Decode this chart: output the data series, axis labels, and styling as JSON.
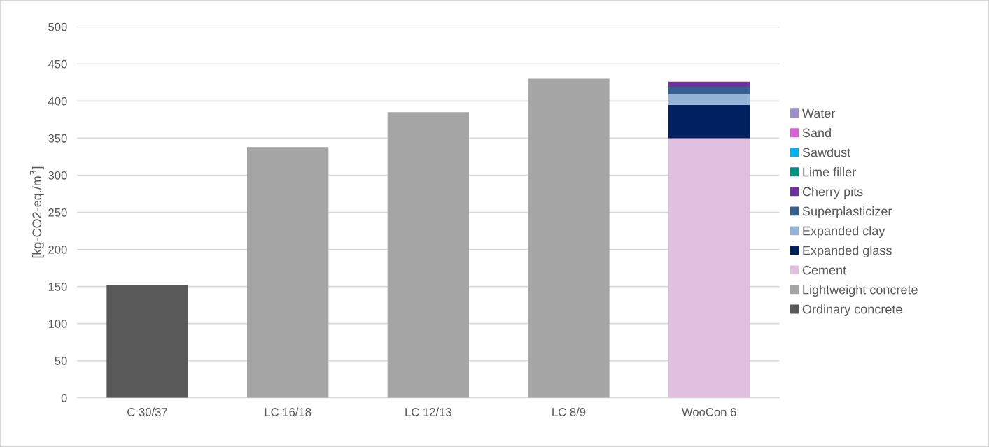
{
  "chart_data": {
    "type": "bar",
    "stacked": true,
    "categories": [
      "C 30/37",
      "LC 16/18",
      "LC 12/13",
      "LC 8/9",
      "WooCon 6"
    ],
    "ylabel": "[kg-CO2-eq./m$^{3}$]",
    "ylim": [
      0,
      500
    ],
    "yticks": [
      0,
      50,
      100,
      150,
      200,
      250,
      300,
      350,
      400,
      450,
      500
    ],
    "grid": "y",
    "legend": "right",
    "series": [
      {
        "name": "Ordinary concrete",
        "color": "#595959",
        "values": [
          152,
          null,
          null,
          null,
          null
        ]
      },
      {
        "name": "Lightweight concrete",
        "color": "#a5a5a5",
        "values": [
          null,
          338,
          385,
          430,
          null
        ]
      },
      {
        "name": "Cement",
        "color": "#e0bfdf",
        "values": [
          null,
          null,
          null,
          null,
          350
        ]
      },
      {
        "name": "Expanded glass",
        "color": "#002060",
        "values": [
          null,
          null,
          null,
          null,
          45
        ]
      },
      {
        "name": "Expanded clay",
        "color": "#95b3d7",
        "values": [
          null,
          null,
          null,
          null,
          14
        ]
      },
      {
        "name": "Superplasticizer",
        "color": "#366092",
        "values": [
          null,
          null,
          null,
          null,
          10
        ]
      },
      {
        "name": "Cherry pits",
        "color": "#7030a0",
        "values": [
          null,
          null,
          null,
          null,
          7
        ]
      },
      {
        "name": "Lime filler",
        "color": "#009281",
        "values": [
          null,
          null,
          null,
          null,
          null
        ]
      },
      {
        "name": "Sawdust",
        "color": "#00b0f0",
        "values": [
          null,
          null,
          null,
          null,
          null
        ]
      },
      {
        "name": "Sand",
        "color": "#d660d6",
        "values": [
          null,
          null,
          null,
          null,
          null
        ]
      },
      {
        "name": "Water",
        "color": "#9e8fcc",
        "values": [
          null,
          null,
          null,
          null,
          null
        ]
      }
    ]
  }
}
